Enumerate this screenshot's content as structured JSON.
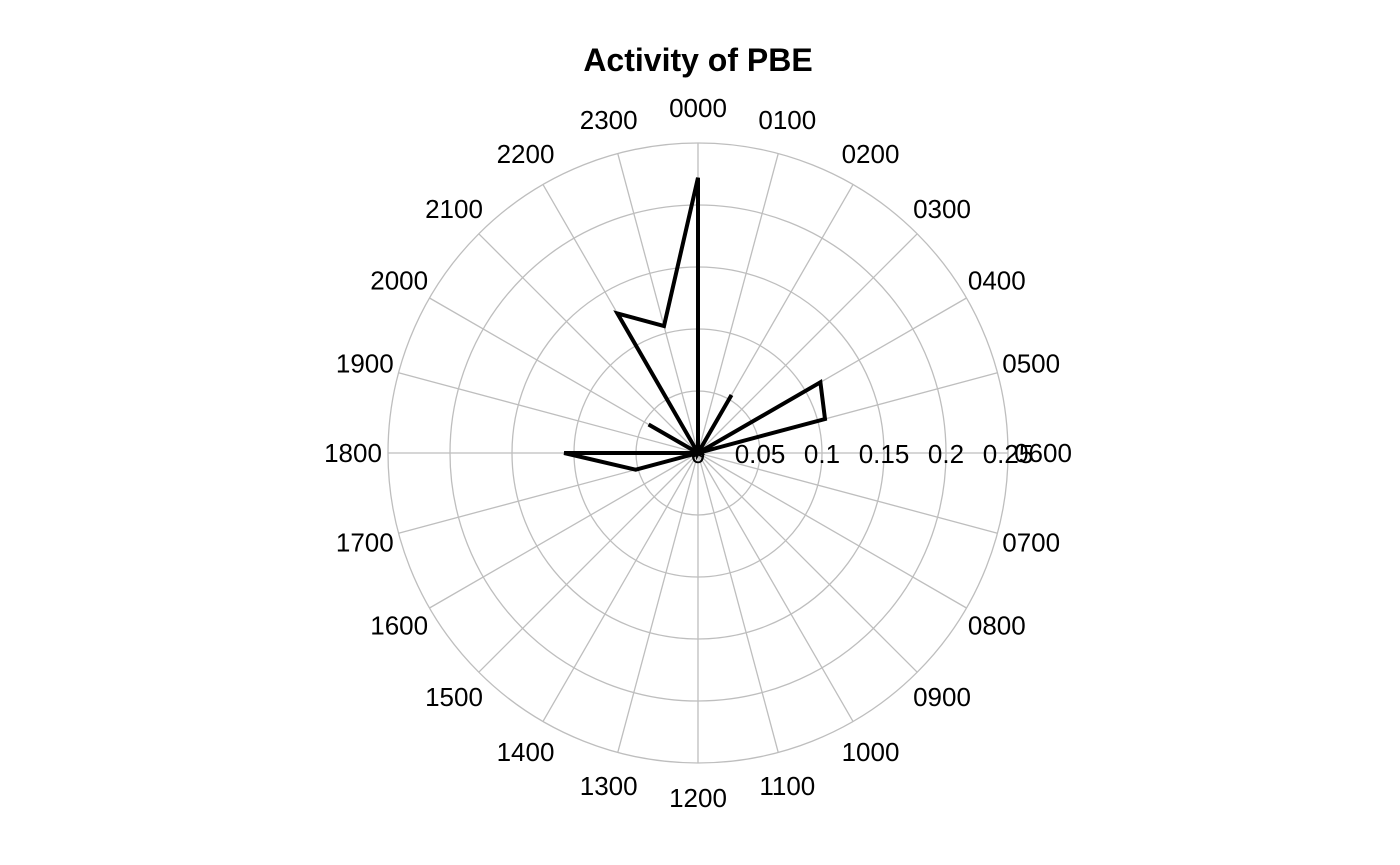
{
  "chart_data": {
    "type": "line",
    "coordinate_system": "polar",
    "title": "Activity of PBE",
    "direction": "clockwise",
    "start_at": "top",
    "grid": true,
    "legend": "none",
    "theta_labels": [
      "0000",
      "0100",
      "0200",
      "0300",
      "0400",
      "0500",
      "0600",
      "0700",
      "0800",
      "0900",
      "1000",
      "1100",
      "1200",
      "1300",
      "1400",
      "1500",
      "1600",
      "1700",
      "1800",
      "1900",
      "2000",
      "2100",
      "2200",
      "2300"
    ],
    "radial_ticks": [
      0,
      0.05,
      0.1,
      0.15,
      0.2,
      0.25
    ],
    "radial_tick_labels": [
      "0",
      "0.05",
      "0.1",
      "0.15",
      "0.2",
      "0.25"
    ],
    "rlim": [
      0,
      0.25
    ],
    "series": [
      {
        "color": "#000000",
        "values": [
          0.222,
          0,
          0.054,
          0,
          0.114,
          0.106,
          0,
          0,
          0,
          0,
          0,
          0,
          0,
          0,
          0,
          0,
          0,
          0.052,
          0.108,
          0,
          0.046,
          0,
          0.13,
          0.106
        ]
      }
    ]
  }
}
